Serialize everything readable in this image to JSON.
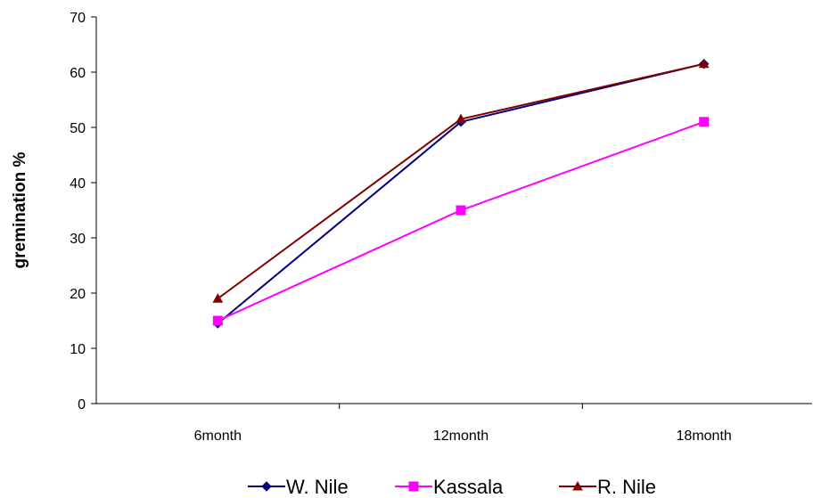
{
  "chart_data": {
    "type": "line",
    "title": "",
    "xlabel": "",
    "ylabel": "gremination %",
    "ylim": [
      0,
      70
    ],
    "yticks": [
      0,
      10,
      20,
      30,
      40,
      50,
      60,
      70
    ],
    "categories": [
      "6month",
      "12month",
      "18month"
    ],
    "grid": false,
    "legend": "bottom",
    "series": [
      {
        "name": "W. Nile",
        "values": [
          14.5,
          51,
          61.5
        ],
        "color": "#000080",
        "marker": "diamond"
      },
      {
        "name": "Kassala",
        "values": [
          15,
          35,
          51
        ],
        "color": "#FF00FF",
        "marker": "square"
      },
      {
        "name": "R. Nile",
        "values": [
          19,
          51.5,
          61.5
        ],
        "color": "#800000",
        "marker": "triangle"
      }
    ]
  }
}
